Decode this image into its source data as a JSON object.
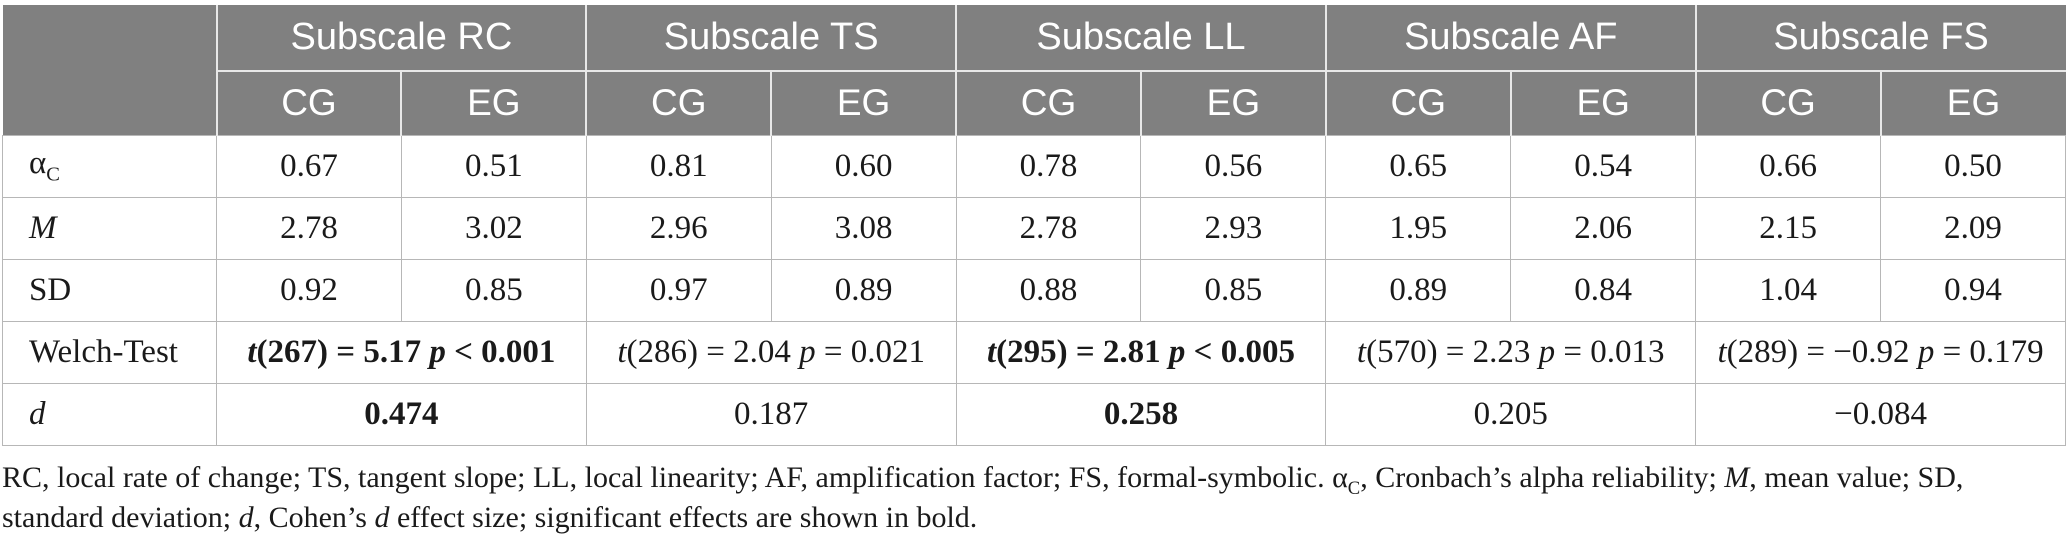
{
  "colors": {
    "header_bg": "#808080",
    "header_text": "#ffffff",
    "body_border": "#b7b7b7"
  },
  "table": {
    "corner_label": "",
    "groups": [
      "Subscale RC",
      "Subscale TS",
      "Subscale LL",
      "Subscale AF",
      "Subscale FS"
    ],
    "subcolumns": [
      "CG",
      "EG"
    ],
    "rows": [
      {
        "id": "alpha-c",
        "label": [
          {
            "text": "α"
          },
          {
            "text": "C",
            "sub": true
          }
        ],
        "merged": false,
        "cells": [
          "0.67",
          "0.51",
          "0.81",
          "0.60",
          "0.78",
          "0.56",
          "0.65",
          "0.54",
          "0.66",
          "0.50"
        ]
      },
      {
        "id": "mean",
        "label": [
          {
            "text": "M",
            "italic": true
          }
        ],
        "merged": false,
        "cells": [
          "2.78",
          "3.02",
          "2.96",
          "3.08",
          "2.78",
          "2.93",
          "1.95",
          "2.06",
          "2.15",
          "2.09"
        ]
      },
      {
        "id": "sd",
        "label": [
          {
            "text": "SD"
          }
        ],
        "merged": false,
        "cells": [
          "0.92",
          "0.85",
          "0.97",
          "0.89",
          "0.88",
          "0.85",
          "0.89",
          "0.84",
          "1.04",
          "0.94"
        ]
      },
      {
        "id": "welch-test",
        "label": [
          {
            "text": "Welch-Test"
          }
        ],
        "merged": true,
        "cells": [
          {
            "bold": true,
            "segments": [
              {
                "text": "t",
                "italic": true
              },
              {
                "text": "(267) = 5.17 "
              },
              {
                "text": "p",
                "italic": true
              },
              {
                "text": " < 0.001"
              }
            ]
          },
          {
            "bold": false,
            "segments": [
              {
                "text": "t",
                "italic": true
              },
              {
                "text": "(286) = 2.04 "
              },
              {
                "text": "p",
                "italic": true
              },
              {
                "text": " = 0.021"
              }
            ]
          },
          {
            "bold": true,
            "segments": [
              {
                "text": "t",
                "italic": true
              },
              {
                "text": "(295) = 2.81 "
              },
              {
                "text": "p",
                "italic": true
              },
              {
                "text": " < 0.005"
              }
            ]
          },
          {
            "bold": false,
            "segments": [
              {
                "text": "t",
                "italic": true
              },
              {
                "text": "(570) = 2.23 "
              },
              {
                "text": "p",
                "italic": true
              },
              {
                "text": " = 0.013"
              }
            ]
          },
          {
            "bold": false,
            "segments": [
              {
                "text": "t",
                "italic": true
              },
              {
                "text": "(289) = −0.92 "
              },
              {
                "text": "p",
                "italic": true
              },
              {
                "text": " = 0.179"
              }
            ]
          }
        ]
      },
      {
        "id": "cohens-d",
        "label": [
          {
            "text": "d",
            "italic": true
          }
        ],
        "merged": true,
        "cells": [
          {
            "bold": true,
            "segments": [
              {
                "text": "0.474"
              }
            ]
          },
          {
            "bold": false,
            "segments": [
              {
                "text": "0.187"
              }
            ]
          },
          {
            "bold": true,
            "segments": [
              {
                "text": "0.258"
              }
            ]
          },
          {
            "bold": false,
            "segments": [
              {
                "text": "0.205"
              }
            ]
          },
          {
            "bold": false,
            "segments": [
              {
                "text": "−0.084"
              }
            ]
          }
        ]
      }
    ]
  },
  "footnote": {
    "segments": [
      {
        "text": "RC, local rate of change; TS, tangent slope; LL, local linearity; AF, amplification factor; FS, formal-symbolic. "
      },
      {
        "text": "α"
      },
      {
        "text": "C",
        "sub": true
      },
      {
        "text": ", Cronbach’s alpha reliability; "
      },
      {
        "text": "M",
        "italic": true
      },
      {
        "text": ", mean value; SD, standard deviation; "
      },
      {
        "text": "d",
        "italic": true
      },
      {
        "text": ", Cohen’s "
      },
      {
        "text": "d",
        "italic": true
      },
      {
        "text": " effect size; significant effects are shown in bold."
      }
    ]
  }
}
